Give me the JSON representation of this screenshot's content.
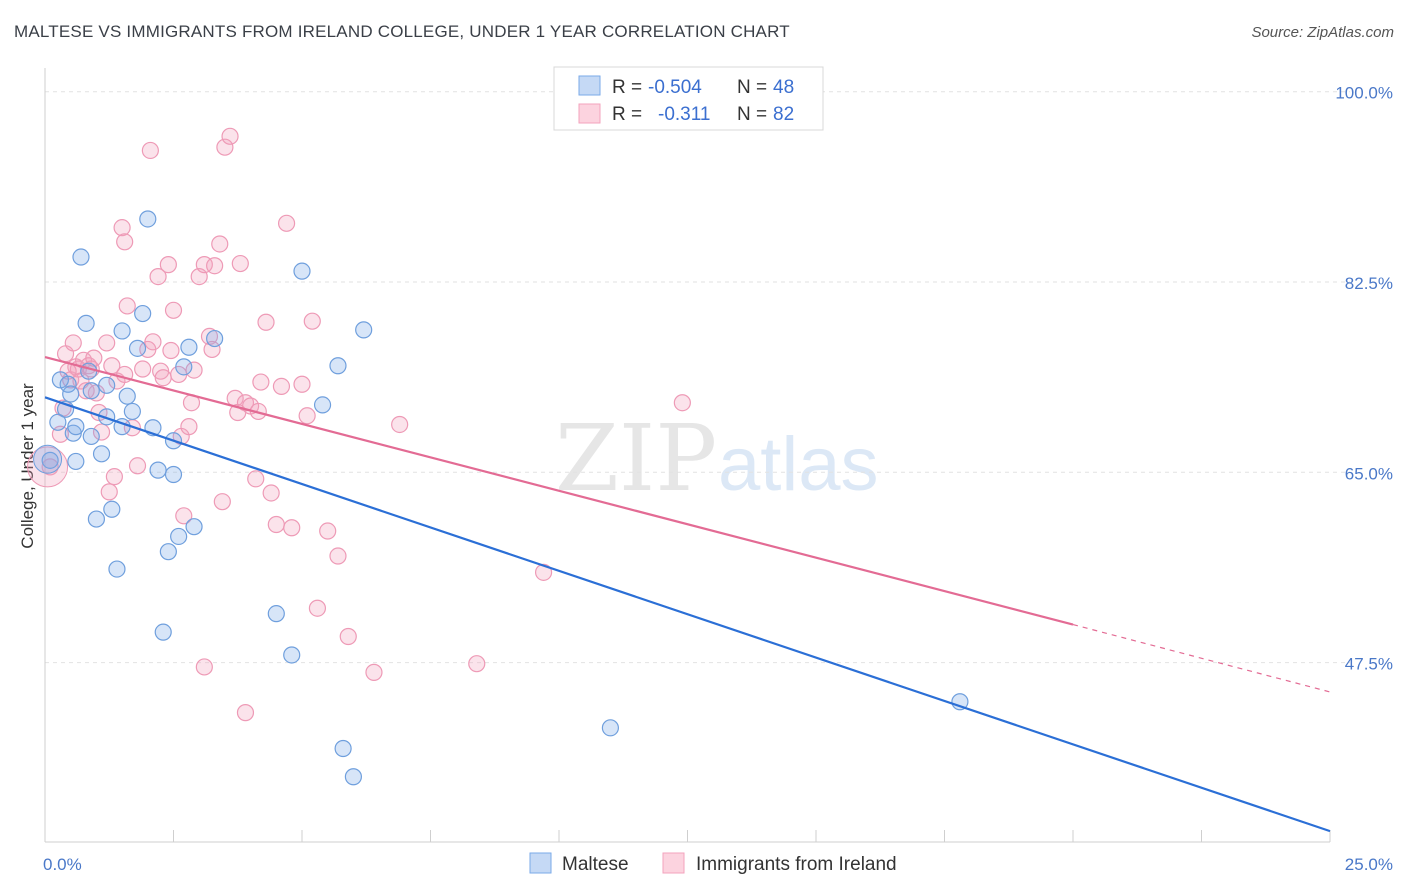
{
  "title": "MALTESE VS IMMIGRANTS FROM IRELAND COLLEGE, UNDER 1 YEAR CORRELATION CHART",
  "source": "Source: ZipAtlas.com",
  "watermark": {
    "zip": "ZIP",
    "atlas": "atlas"
  },
  "legend": {
    "rows": [
      {
        "r_label": "R = ",
        "r_value": "-0.504",
        "n_label": "N = ",
        "n_value": "48"
      },
      {
        "r_label": "R = ",
        "r_value": "-0.311",
        "n_label": "N = ",
        "n_value": "82"
      }
    ]
  },
  "colors": {
    "maltese": "#7aaae8",
    "ireland": "#f3a3bd",
    "maltese_line": "#2b6fd6",
    "ireland_line": "#e36b94",
    "tick_text": "#4a78c8"
  },
  "chart_data": {
    "type": "scatter",
    "xlabel": "",
    "ylabel": "College, Under 1 year",
    "xlim": [
      0,
      25
    ],
    "ylim": [
      31,
      102
    ],
    "x_tick_labels": [
      "0.0%",
      "25.0%"
    ],
    "y_ticks": [
      100,
      82.5,
      65,
      47.5
    ],
    "y_tick_labels": [
      "100.0%",
      "82.5%",
      "65.0%",
      "47.5%"
    ],
    "grid": true,
    "legend_position": "top-center",
    "series": [
      {
        "name": "Maltese",
        "color": "#7aaae8",
        "trend": {
          "x": [
            0,
            25
          ],
          "y": [
            71.9,
            32.0
          ]
        },
        "points": [
          [
            0.3,
            73.5
          ],
          [
            0.4,
            70.8
          ],
          [
            0.45,
            73.1
          ],
          [
            0.5,
            72.2
          ],
          [
            0.55,
            68.6
          ],
          [
            0.6,
            66.0
          ],
          [
            0.7,
            84.8
          ],
          [
            0.8,
            78.7
          ],
          [
            0.85,
            74.3
          ],
          [
            0.9,
            72.5
          ],
          [
            1.0,
            60.7
          ],
          [
            1.1,
            66.7
          ],
          [
            1.2,
            73.0
          ],
          [
            1.3,
            61.6
          ],
          [
            1.4,
            56.1
          ],
          [
            1.5,
            78.0
          ],
          [
            1.6,
            72.0
          ],
          [
            1.7,
            70.6
          ],
          [
            1.8,
            76.4
          ],
          [
            1.9,
            79.6
          ],
          [
            2.0,
            88.3
          ],
          [
            2.1,
            69.1
          ],
          [
            2.2,
            65.2
          ],
          [
            2.3,
            50.3
          ],
          [
            2.4,
            57.7
          ],
          [
            2.5,
            64.8
          ],
          [
            2.6,
            59.1
          ],
          [
            2.7,
            74.7
          ],
          [
            2.8,
            76.5
          ],
          [
            2.9,
            60.0
          ],
          [
            3.3,
            77.3
          ],
          [
            4.5,
            52.0
          ],
          [
            4.8,
            48.2
          ],
          [
            5.0,
            83.5
          ],
          [
            5.4,
            71.2
          ],
          [
            5.7,
            74.8
          ],
          [
            5.8,
            39.6
          ],
          [
            6.0,
            37.0
          ],
          [
            6.2,
            78.1
          ],
          [
            11.0,
            41.5
          ],
          [
            17.8,
            43.9
          ],
          [
            0.1,
            66.1
          ],
          [
            0.25,
            69.6
          ],
          [
            0.6,
            69.2
          ],
          [
            1.5,
            69.2
          ],
          [
            2.5,
            67.9
          ],
          [
            1.2,
            70.1
          ],
          [
            0.9,
            68.3
          ]
        ]
      },
      {
        "name": "Immigrants from Ireland",
        "color": "#f3a3bd",
        "trend": {
          "x": [
            0,
            20
          ],
          "y": [
            75.6,
            51.0
          ]
        },
        "trend_dashed": {
          "x": [
            20,
            25
          ],
          "y": [
            51.0,
            44.8
          ]
        },
        "points": [
          [
            0.1,
            65.5
          ],
          [
            0.3,
            68.5
          ],
          [
            0.35,
            70.9
          ],
          [
            0.4,
            75.9
          ],
          [
            0.5,
            73.5
          ],
          [
            0.55,
            76.9
          ],
          [
            0.6,
            74.7
          ],
          [
            0.65,
            74.5
          ],
          [
            0.7,
            73.4
          ],
          [
            0.75,
            75.3
          ],
          [
            0.8,
            72.5
          ],
          [
            0.85,
            74.8
          ],
          [
            0.9,
            74.5
          ],
          [
            0.95,
            75.5
          ],
          [
            1.0,
            72.3
          ],
          [
            1.05,
            70.5
          ],
          [
            1.1,
            68.7
          ],
          [
            1.2,
            76.9
          ],
          [
            1.25,
            63.2
          ],
          [
            1.3,
            74.8
          ],
          [
            1.35,
            64.6
          ],
          [
            1.4,
            73.4
          ],
          [
            1.5,
            87.5
          ],
          [
            1.55,
            86.2
          ],
          [
            1.6,
            80.3
          ],
          [
            1.7,
            69.1
          ],
          [
            1.8,
            65.6
          ],
          [
            1.9,
            74.5
          ],
          [
            2.0,
            76.3
          ],
          [
            2.05,
            94.6
          ],
          [
            2.1,
            77.0
          ],
          [
            2.2,
            83.0
          ],
          [
            2.25,
            74.3
          ],
          [
            2.3,
            73.7
          ],
          [
            2.4,
            84.1
          ],
          [
            2.45,
            76.2
          ],
          [
            2.5,
            79.9
          ],
          [
            2.6,
            74.0
          ],
          [
            2.65,
            68.3
          ],
          [
            2.7,
            61.0
          ],
          [
            2.8,
            69.2
          ],
          [
            2.85,
            71.4
          ],
          [
            2.9,
            74.4
          ],
          [
            3.0,
            83.0
          ],
          [
            3.1,
            84.1
          ],
          [
            3.2,
            77.5
          ],
          [
            3.25,
            76.3
          ],
          [
            3.3,
            84.0
          ],
          [
            3.4,
            86.0
          ],
          [
            3.45,
            62.3
          ],
          [
            3.5,
            94.9
          ],
          [
            3.6,
            95.9
          ],
          [
            3.7,
            71.8
          ],
          [
            3.75,
            70.5
          ],
          [
            3.8,
            84.2
          ],
          [
            3.9,
            71.4
          ],
          [
            4.0,
            71.1
          ],
          [
            4.1,
            64.4
          ],
          [
            4.15,
            70.6
          ],
          [
            4.2,
            73.3
          ],
          [
            4.3,
            78.8
          ],
          [
            4.4,
            63.1
          ],
          [
            4.5,
            60.2
          ],
          [
            4.6,
            72.9
          ],
          [
            4.7,
            87.9
          ],
          [
            4.8,
            59.9
          ],
          [
            5.0,
            73.1
          ],
          [
            5.1,
            70.2
          ],
          [
            5.2,
            78.9
          ],
          [
            5.3,
            52.5
          ],
          [
            5.5,
            59.6
          ],
          [
            5.7,
            57.3
          ],
          [
            5.9,
            49.9
          ],
          [
            6.4,
            46.6
          ],
          [
            6.9,
            69.4
          ],
          [
            8.4,
            47.4
          ],
          [
            9.7,
            55.8
          ],
          [
            12.4,
            71.4
          ],
          [
            3.1,
            47.1
          ],
          [
            3.9,
            42.9
          ],
          [
            1.55,
            74.0
          ],
          [
            0.45,
            74.3
          ]
        ]
      }
    ]
  },
  "bottom_legend": [
    {
      "label": "Maltese"
    },
    {
      "label": "Immigrants from Ireland"
    }
  ]
}
